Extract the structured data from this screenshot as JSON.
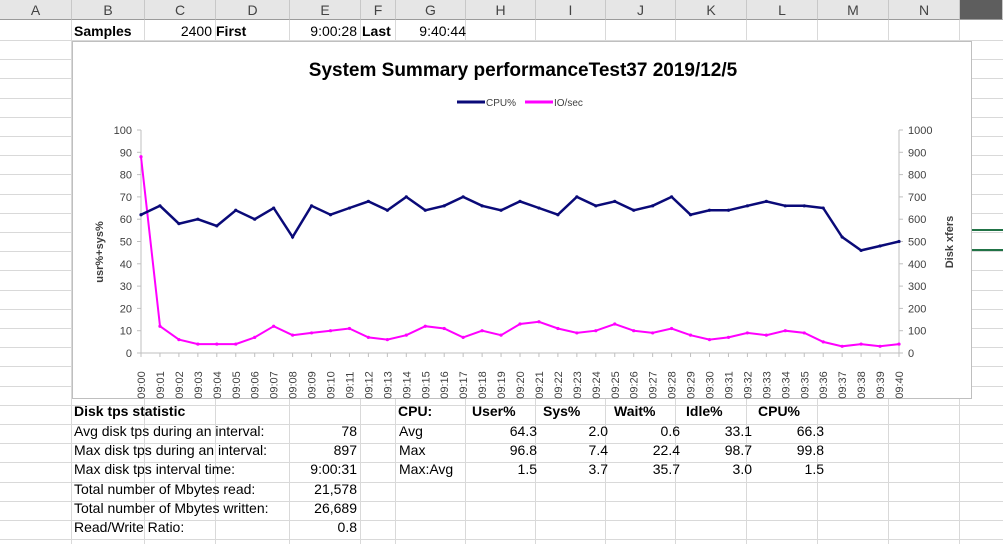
{
  "columns": [
    "A",
    "B",
    "C",
    "D",
    "E",
    "F",
    "G",
    "H",
    "I",
    "J",
    "K",
    "L",
    "M",
    "N"
  ],
  "row1": {
    "samples_label": "Samples",
    "samples_value": "2400",
    "first_label": "First",
    "first_value": "9:00:28",
    "last_label": "Last",
    "last_value": "9:40:44"
  },
  "disk_stats": {
    "heading": "Disk tps statistic",
    "rows": [
      {
        "label": "Avg disk tps during an interval:",
        "value": "78"
      },
      {
        "label": "Max disk tps during an interval:",
        "value": "897"
      },
      {
        "label": "Max disk tps interval time:",
        "value": "9:00:31"
      },
      {
        "label": "Total number of Mbytes read:",
        "value": "21,578"
      },
      {
        "label": "Total number of Mbytes written:",
        "value": "26,689"
      },
      {
        "label": "Read/Write Ratio:",
        "value": "0.8"
      }
    ]
  },
  "cpu_table": {
    "heading": "CPU:",
    "columns": [
      "User%",
      "Sys%",
      "Wait%",
      "Idle%",
      "CPU%"
    ],
    "rows": [
      {
        "label": "Avg",
        "values": [
          "64.3",
          "2.0",
          "0.6",
          "33.1",
          "66.3"
        ]
      },
      {
        "label": "Max",
        "values": [
          "96.8",
          "7.4",
          "22.4",
          "98.7",
          "99.8"
        ]
      },
      {
        "label": "Max:Avg",
        "values": [
          "1.5",
          "3.7",
          "35.7",
          "3.0",
          "1.5"
        ]
      }
    ]
  },
  "chart_data": {
    "type": "line",
    "title": "System Summary performanceTest37  2019/12/5",
    "ylabel": "usr%+sys%",
    "y2label": "Disk xfers",
    "ylim": [
      0,
      100
    ],
    "y2lim": [
      0,
      1000
    ],
    "yticks": [
      "0",
      "10",
      "20",
      "30",
      "40",
      "50",
      "60",
      "70",
      "80",
      "90",
      "100"
    ],
    "y2ticks": [
      "0",
      "100",
      "200",
      "300",
      "400",
      "500",
      "600",
      "700",
      "800",
      "900",
      "1000"
    ],
    "x": [
      "09:00",
      "09:01",
      "09:02",
      "09:03",
      "09:04",
      "09:05",
      "09:06",
      "09:07",
      "09:08",
      "09:09",
      "09:10",
      "09:11",
      "09:12",
      "09:13",
      "09:14",
      "09:15",
      "09:16",
      "09:17",
      "09:18",
      "09:19",
      "09:20",
      "09:21",
      "09:22",
      "09:23",
      "09:24",
      "09:25",
      "09:26",
      "09:27",
      "09:28",
      "09:29",
      "09:30",
      "09:31",
      "09:32",
      "09:33",
      "09:34",
      "09:35",
      "09:36",
      "09:37",
      "09:38",
      "09:39",
      "09:40"
    ],
    "legend_position": "top",
    "grid": false,
    "series": [
      {
        "name": "CPU%",
        "axis": "left",
        "color": "#0a0a78",
        "values": [
          62,
          66,
          58,
          60,
          57,
          64,
          60,
          65,
          52,
          66,
          62,
          65,
          68,
          64,
          70,
          64,
          66,
          70,
          66,
          64,
          68,
          65,
          62,
          70,
          66,
          68,
          64,
          66,
          70,
          62,
          64,
          64,
          66,
          68,
          66,
          66,
          65,
          52,
          46,
          48,
          50
        ]
      },
      {
        "name": "IO/sec",
        "axis": "right",
        "color": "#ff00ff",
        "values": [
          880,
          120,
          60,
          40,
          40,
          40,
          70,
          120,
          80,
          90,
          100,
          110,
          70,
          60,
          80,
          120,
          110,
          70,
          100,
          80,
          130,
          140,
          110,
          90,
          100,
          130,
          100,
          90,
          110,
          80,
          60,
          70,
          90,
          80,
          100,
          90,
          50,
          30,
          40,
          30,
          40
        ]
      }
    ]
  }
}
